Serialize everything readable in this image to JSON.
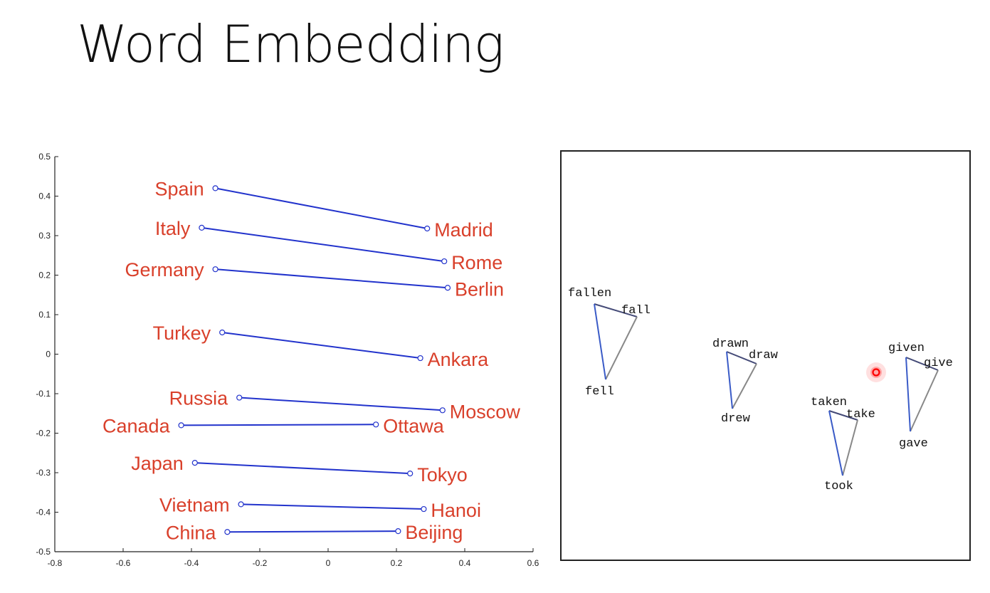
{
  "slide": {
    "title": "Word Embedding"
  },
  "colors": {
    "label": "#d9402b",
    "line": "#2233cc",
    "axis": "#222222",
    "tri_left": "#3a5bc7",
    "tri_right": "#888888",
    "cursor": "#ff0000"
  },
  "chart_data": [
    {
      "type": "line",
      "title": "",
      "xlabel": "",
      "ylabel": "",
      "xlim": [
        -0.8,
        0.6
      ],
      "ylim": [
        -0.5,
        0.5
      ],
      "xticks": [
        "-0.8",
        "-0.6",
        "-0.4",
        "-0.2",
        "0",
        "0.2",
        "0.4",
        "0.6"
      ],
      "yticks": [
        "0.5",
        "0.4",
        "0.3",
        "0.2",
        "0.1",
        "0",
        "-0.1",
        "-0.2",
        "-0.3",
        "-0.4",
        "-0.5"
      ],
      "grid": false,
      "pairs": [
        {
          "country": "Spain",
          "cx": -0.33,
          "cy": 0.42,
          "capital": "Madrid",
          "kx": 0.29,
          "ky": 0.318
        },
        {
          "country": "Italy",
          "cx": -0.37,
          "cy": 0.32,
          "capital": "Rome",
          "kx": 0.34,
          "ky": 0.235
        },
        {
          "country": "Germany",
          "cx": -0.33,
          "cy": 0.215,
          "capital": "Berlin",
          "kx": 0.35,
          "ky": 0.168
        },
        {
          "country": "Turkey",
          "cx": -0.31,
          "cy": 0.055,
          "capital": "Ankara",
          "kx": 0.27,
          "ky": -0.01
        },
        {
          "country": "Russia",
          "cx": -0.26,
          "cy": -0.11,
          "capital": "Moscow",
          "kx": 0.335,
          "ky": -0.142
        },
        {
          "country": "Canada",
          "cx": -0.43,
          "cy": -0.18,
          "capital": "Ottawa",
          "kx": 0.14,
          "ky": -0.178
        },
        {
          "country": "Japan",
          "cx": -0.39,
          "cy": -0.275,
          "capital": "Tokyo",
          "kx": 0.24,
          "ky": -0.302
        },
        {
          "country": "Vietnam",
          "cx": -0.255,
          "cy": -0.38,
          "capital": "Hanoi",
          "kx": 0.28,
          "ky": -0.392
        },
        {
          "country": "China",
          "cx": -0.295,
          "cy": -0.45,
          "capital": "Beijing",
          "kx": 0.205,
          "ky": -0.448
        }
      ]
    },
    {
      "type": "scatter",
      "title": "",
      "grid": false,
      "axes_ticks": false,
      "groups": [
        {
          "words": [
            "fallen",
            "fall",
            "fell"
          ]
        },
        {
          "words": [
            "drawn",
            "draw",
            "drew"
          ]
        },
        {
          "words": [
            "taken",
            "take",
            "took"
          ]
        },
        {
          "words": [
            "given",
            "give",
            "gave"
          ]
        }
      ]
    }
  ]
}
